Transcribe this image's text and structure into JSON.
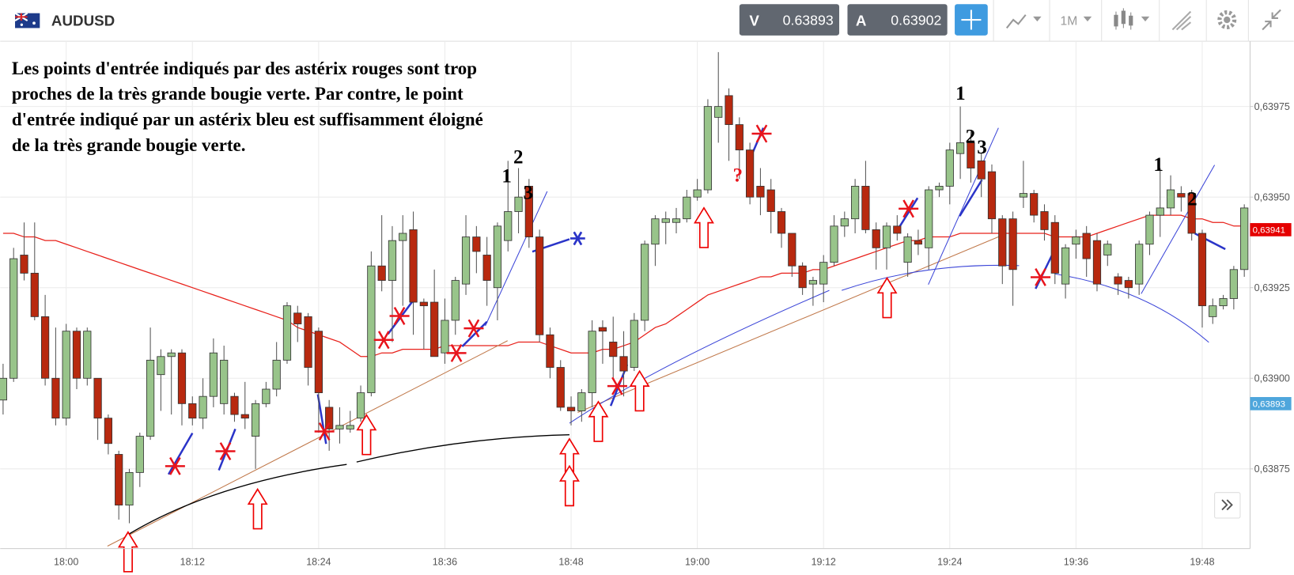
{
  "toolbar": {
    "symbol": "AUDUSD",
    "bid_label": "V",
    "bid": "0.63893",
    "ask_label": "A",
    "ask": "0.63902",
    "timeframe": "1M"
  },
  "chart_data": {
    "type": "candlestick",
    "annotation_lines": [
      "Les points d'entrée indiqués par des astérix rouges sont trop",
      "proches de la très grande bougie verte. Par contre, le point",
      "d'entrée indiqué par un astérix bleu est suffisamment éloigné",
      "de la très grande bougie verte."
    ],
    "markers": [
      "1",
      "2",
      "3",
      "1",
      "2",
      "3",
      "1",
      "2",
      "?"
    ],
    "categories": [
      null,
      null,
      null,
      null,
      null,
      null,
      "18:00",
      null,
      null,
      null,
      null,
      null,
      null,
      null,
      null,
      null,
      null,
      null,
      "18:12",
      null,
      null,
      null,
      null,
      null,
      null,
      null,
      null,
      null,
      null,
      null,
      "18:24",
      null,
      null,
      null,
      null,
      null,
      null,
      null,
      null,
      null,
      null,
      null,
      "18:36",
      null,
      null,
      null,
      null,
      null,
      null,
      null,
      null,
      null,
      null,
      null,
      "18:48",
      null,
      null,
      null,
      null,
      null,
      null,
      null,
      null,
      null,
      null,
      null,
      "19:00",
      null,
      null,
      null,
      null,
      null,
      null,
      null,
      null,
      null,
      null,
      null,
      "19:12",
      null,
      null,
      null,
      null,
      null,
      null,
      null,
      null,
      null,
      null,
      null,
      "19:24",
      null,
      null,
      null,
      null,
      null,
      null,
      null,
      null,
      null,
      null,
      null,
      "19:36",
      null,
      null,
      null,
      null,
      null,
      null,
      null,
      null,
      null,
      null,
      null,
      "19:48",
      null,
      null,
      null,
      null
    ],
    "open": [
      0.63894,
      0.639,
      0.63934,
      0.63929,
      0.63917,
      0.639,
      0.63889,
      0.63913,
      0.639,
      0.639,
      0.63889,
      0.63879,
      0.63865,
      0.63874,
      0.63884,
      0.63901,
      0.63906,
      0.63907,
      0.63893,
      0.63889,
      0.63895,
      0.63893,
      0.63895,
      0.6389,
      0.63884,
      0.63893,
      0.63897,
      0.63905,
      0.63918,
      0.63917,
      0.63913,
      0.63892,
      0.63886,
      0.63886,
      0.63889,
      0.63896,
      0.63931,
      0.63927,
      0.63938,
      0.63941,
      0.63921,
      0.63921,
      0.63907,
      0.63916,
      0.63926,
      0.63939,
      0.63934,
      0.63925,
      0.63938,
      0.63946,
      0.63953,
      0.63939,
      0.63912,
      0.63903,
      0.63892,
      0.63891,
      0.63896,
      0.63914,
      0.6391,
      0.63906,
      0.63903,
      0.63916,
      0.63937,
      0.63943,
      0.63943,
      0.63944,
      0.6395,
      0.63952,
      0.63972,
      0.63978,
      0.6397,
      0.63963,
      0.63953,
      0.63952,
      0.63946,
      0.6394,
      0.63931,
      0.63926,
      0.63926,
      0.63932,
      0.63942,
      0.63944,
      0.63953,
      0.63941,
      0.63936,
      0.63942,
      0.63932,
      0.63938,
      0.63936,
      0.63952,
      0.63953,
      0.63962,
      0.63965,
      0.6396,
      0.63957,
      0.63944,
      0.63944,
      0.6395,
      0.63951,
      0.63946,
      0.63943,
      0.63926,
      0.63937,
      0.6394,
      0.63938,
      0.63934,
      0.63928,
      0.63927,
      0.63926,
      0.63937,
      0.63945,
      0.63947,
      0.63951,
      0.63951,
      0.6394,
      0.63917,
      0.6392,
      0.63922,
      0.6393
    ],
    "high": [
      0.63904,
      0.63936,
      0.63943,
      0.63943,
      0.63923,
      0.63914,
      0.63915,
      0.63914,
      0.63914,
      0.639,
      0.6389,
      0.6388,
      0.63875,
      0.63885,
      0.63914,
      0.63908,
      0.63908,
      0.63908,
      0.63895,
      0.639,
      0.63911,
      0.63909,
      0.63896,
      0.63899,
      0.63894,
      0.63899,
      0.6391,
      0.63921,
      0.6392,
      0.63918,
      0.63914,
      0.63894,
      0.63892,
      0.63891,
      0.63898,
      0.63935,
      0.63945,
      0.63942,
      0.63945,
      0.63946,
      0.63922,
      0.6393,
      0.63922,
      0.63928,
      0.63945,
      0.63942,
      0.63939,
      0.63943,
      0.6396,
      0.63958,
      0.63955,
      0.63941,
      0.63914,
      0.63905,
      0.63895,
      0.63897,
      0.63916,
      0.63916,
      0.63917,
      0.63913,
      0.63918,
      0.63938,
      0.63945,
      0.63946,
      0.63947,
      0.63952,
      0.63955,
      0.63977,
      0.6399,
      0.6398,
      0.63972,
      0.63965,
      0.63958,
      0.63955,
      0.63947,
      0.6394,
      0.63932,
      0.63928,
      0.63934,
      0.63945,
      0.63946,
      0.63955,
      0.6396,
      0.63943,
      0.63943,
      0.63945,
      0.6394,
      0.63941,
      0.63953,
      0.63954,
      0.63965,
      0.63975,
      0.63968,
      0.63962,
      0.63959,
      0.63945,
      0.63946,
      0.6396,
      0.63952,
      0.63948,
      0.63945,
      0.63937,
      0.63941,
      0.63942,
      0.6394,
      0.63938,
      0.63929,
      0.63928,
      0.63938,
      0.63946,
      0.63958,
      0.63956,
      0.63953,
      0.63952,
      0.63941,
      0.63922,
      0.63923,
      0.63931,
      0.63948
    ],
    "low": [
      0.6389,
      0.63899,
      0.63927,
      0.63916,
      0.63898,
      0.63887,
      0.63887,
      0.63897,
      0.63898,
      0.63883,
      0.63879,
      0.63861,
      0.6386,
      0.6387,
      0.63883,
      0.63891,
      0.6389,
      0.63887,
      0.63887,
      0.63886,
      0.63892,
      0.6389,
      0.63888,
      0.63886,
      0.63875,
      0.63892,
      0.63895,
      0.63904,
      0.6391,
      0.63898,
      0.63885,
      0.6388,
      0.63882,
      0.63885,
      0.63888,
      0.63895,
      0.63924,
      0.6391,
      0.6392,
      0.63912,
      0.63908,
      0.63906,
      0.63904,
      0.63912,
      0.63923,
      0.63929,
      0.6392,
      0.63916,
      0.63935,
      0.6394,
      0.63936,
      0.6391,
      0.639,
      0.63891,
      0.63887,
      0.63888,
      0.63892,
      0.63904,
      0.639,
      0.63895,
      0.63902,
      0.63913,
      0.63931,
      0.63937,
      0.6394,
      0.63943,
      0.63949,
      0.63951,
      0.63965,
      0.6396,
      0.63955,
      0.63948,
      0.63945,
      0.6394,
      0.63936,
      0.63928,
      0.63923,
      0.6392,
      0.63921,
      0.63931,
      0.63939,
      0.6394,
      0.6394,
      0.6393,
      0.6393,
      0.63938,
      0.63928,
      0.63934,
      0.6393,
      0.6395,
      0.63948,
      0.63955,
      0.63954,
      0.6395,
      0.6394,
      0.63926,
      0.6392,
      0.63947,
      0.63943,
      0.63938,
      0.63926,
      0.63922,
      0.63933,
      0.63928,
      0.63924,
      0.63931,
      0.63923,
      0.63922,
      0.63923,
      0.63934,
      0.63939,
      0.63945,
      0.63946,
      0.63938,
      0.63914,
      0.63915,
      0.63919,
      0.63919,
      0.63928
    ],
    "close": [
      0.639,
      0.63933,
      0.63929,
      0.63917,
      0.639,
      0.63889,
      0.63913,
      0.639,
      0.63913,
      0.63889,
      0.63882,
      0.63865,
      0.63874,
      0.63884,
      0.63905,
      0.63906,
      0.63907,
      0.63893,
      0.63889,
      0.63895,
      0.63907,
      0.63905,
      0.6389,
      0.63889,
      0.63893,
      0.63897,
      0.63905,
      0.6392,
      0.63915,
      0.63903,
      0.63896,
      0.63886,
      0.63887,
      0.63887,
      0.63896,
      0.63931,
      0.63927,
      0.63938,
      0.6394,
      0.63921,
      0.6392,
      0.63906,
      0.63916,
      0.63927,
      0.63939,
      0.63935,
      0.63927,
      0.63942,
      0.63946,
      0.6395,
      0.63939,
      0.63912,
      0.63903,
      0.63892,
      0.63891,
      0.63896,
      0.63913,
      0.63913,
      0.63906,
      0.63902,
      0.63916,
      0.63937,
      0.63944,
      0.63944,
      0.63944,
      0.6395,
      0.63952,
      0.63975,
      0.63975,
      0.6397,
      0.63963,
      0.6395,
      0.6395,
      0.63946,
      0.6394,
      0.63931,
      0.63925,
      0.63927,
      0.63932,
      0.63942,
      0.63944,
      0.63953,
      0.63941,
      0.63936,
      0.63942,
      0.6394,
      0.63939,
      0.63937,
      0.63952,
      0.63953,
      0.63963,
      0.63965,
      0.63958,
      0.63955,
      0.63944,
      0.63931,
      0.6393,
      0.63951,
      0.63945,
      0.63941,
      0.63929,
      0.63936,
      0.63939,
      0.63933,
      0.63926,
      0.63937,
      0.63926,
      0.63925,
      0.63937,
      0.63945,
      0.63947,
      0.63952,
      0.6395,
      0.6394,
      0.6392,
      0.6392,
      0.63922,
      0.6393,
      0.63947
    ],
    "up_color": "#98c48a",
    "down_color": "#b8290f",
    "moving_average": {
      "color": "#e8201a",
      "values": [
        0.6394,
        0.6394,
        0.63939,
        0.63939,
        0.63938,
        0.63938,
        0.63937,
        0.63936,
        0.63935,
        0.63934,
        0.63933,
        0.63932,
        0.63931,
        0.6393,
        0.63929,
        0.63928,
        0.63927,
        0.63926,
        0.63925,
        0.63924,
        0.63923,
        0.63922,
        0.63921,
        0.6392,
        0.63919,
        0.63918,
        0.63917,
        0.63916,
        0.63914,
        0.63913,
        0.63912,
        0.63911,
        0.6391,
        0.63908,
        0.63906,
        0.63906,
        0.63907,
        0.63907,
        0.63908,
        0.63908,
        0.63908,
        0.63908,
        0.63909,
        0.63909,
        0.63909,
        0.63909,
        0.63909,
        0.63909,
        0.63909,
        0.6391,
        0.6391,
        0.6391,
        0.63909,
        0.63908,
        0.63907,
        0.63907,
        0.63907,
        0.63908,
        0.63908,
        0.63909,
        0.6391,
        0.63912,
        0.63914,
        0.63915,
        0.63917,
        0.63919,
        0.63921,
        0.63923,
        0.63924,
        0.63925,
        0.63926,
        0.63927,
        0.63928,
        0.63928,
        0.63929,
        0.63929,
        0.63929,
        0.6393,
        0.6393,
        0.63931,
        0.63932,
        0.63933,
        0.63934,
        0.63935,
        0.63936,
        0.63937,
        0.63938,
        0.63938,
        0.63939,
        0.63939,
        0.63939,
        0.6394,
        0.6394,
        0.6394,
        0.6394,
        0.6394,
        0.6394,
        0.6394,
        0.6394,
        0.6394,
        0.63939,
        0.63939,
        0.63939,
        0.63939,
        0.6394,
        0.63941,
        0.63942,
        0.63943,
        0.63944,
        0.63945,
        0.63945,
        0.63945,
        0.63945,
        0.63944,
        0.63944,
        0.63943,
        0.63943,
        0.63942,
        0.63942
      ]
    },
    "ylim": [
      0.63853,
      0.63993
    ],
    "yticks": [
      {
        "value": 0.63875,
        "label": "0,63875"
      },
      {
        "value": 0.639,
        "label": "0,63900"
      },
      {
        "value": 0.63925,
        "label": "0,63925"
      },
      {
        "value": 0.6395,
        "label": "0,63950"
      },
      {
        "value": 0.63975,
        "label": "0,63975"
      }
    ],
    "price_labels": [
      {
        "value": 0.63941,
        "label": "0,63941",
        "color": "#e50000"
      },
      {
        "value": 0.63893,
        "label": "0,63893",
        "color": "#4ea6dc"
      }
    ],
    "grid": true
  }
}
